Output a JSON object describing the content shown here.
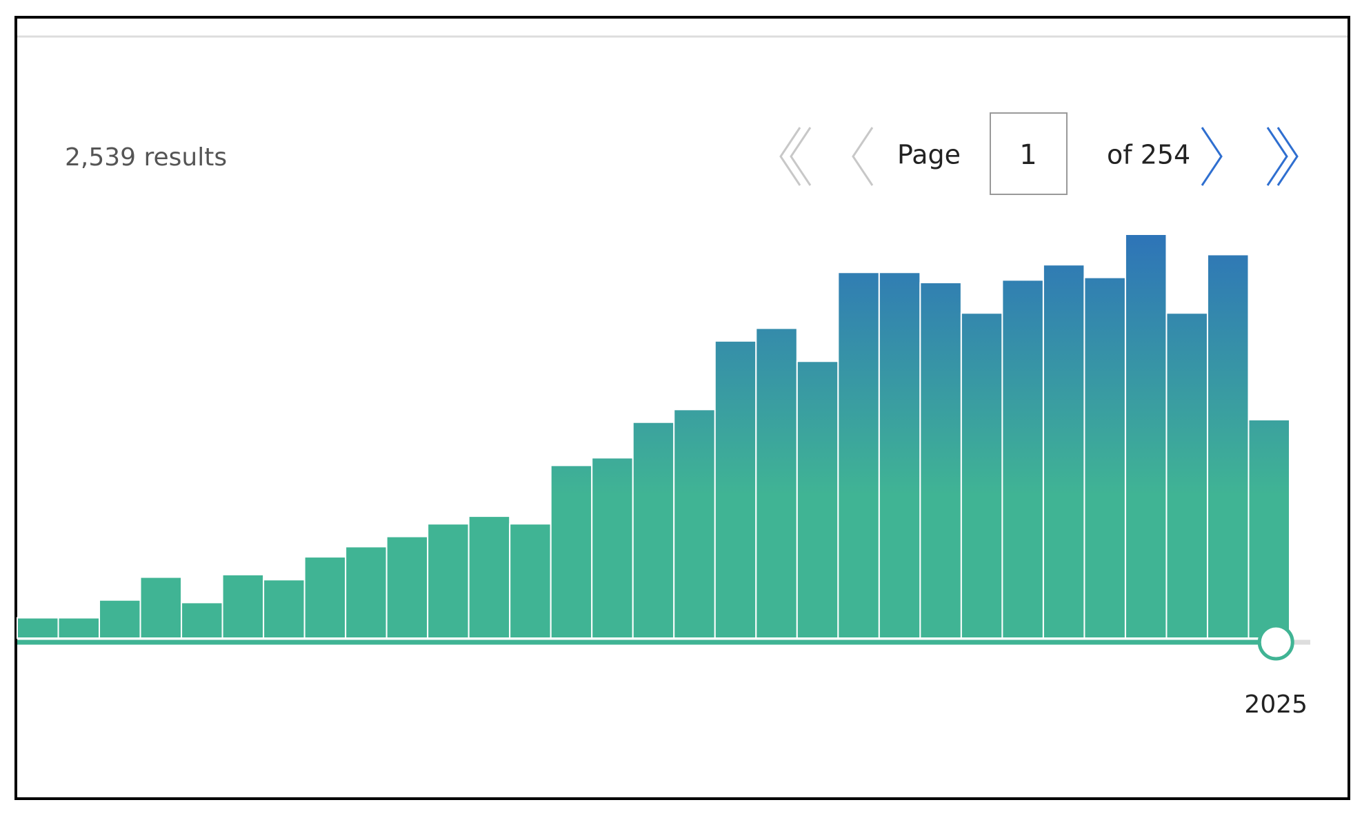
{
  "results_text": "2,539 results",
  "pagination": {
    "label": "Page",
    "current": 1,
    "total_text": "of 254"
  },
  "chart_data": {
    "type": "bar",
    "categories": [
      null,
      null,
      null,
      null,
      null,
      null,
      null,
      null,
      null,
      null,
      null,
      null,
      null,
      null,
      null,
      null,
      null,
      null,
      null,
      null,
      null,
      null,
      null,
      null,
      null,
      null,
      null,
      null,
      null,
      null,
      "2025"
    ],
    "values": [
      8,
      8,
      15,
      24,
      14,
      25,
      23,
      32,
      36,
      40,
      45,
      48,
      45,
      68,
      71,
      85,
      90,
      117,
      122,
      109,
      144,
      144,
      140,
      128,
      141,
      147,
      142,
      159,
      128,
      151,
      86
    ],
    "color_top": "#2e74b8",
    "color_bottom": "#40b494"
  }
}
